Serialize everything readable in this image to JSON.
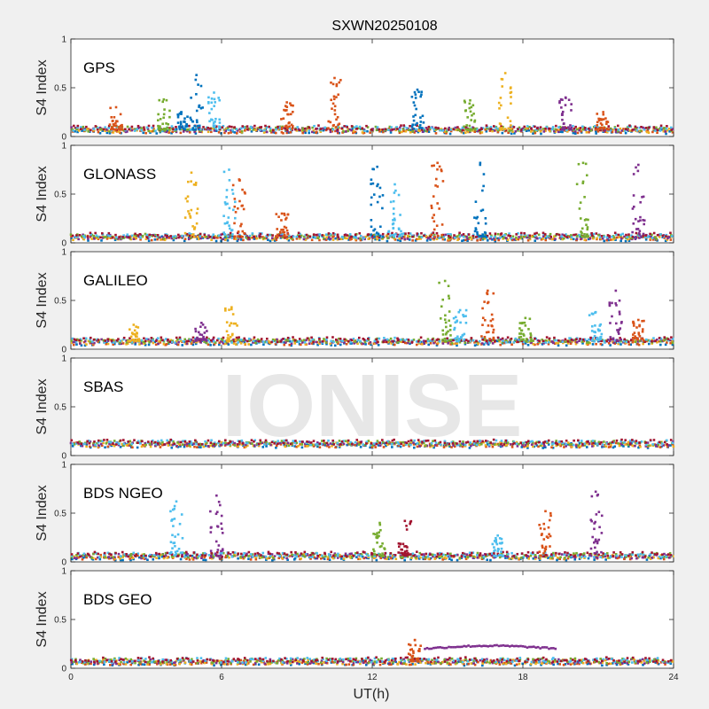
{
  "chart_data": {
    "type": "scatter",
    "title": "SXWN20250108",
    "xlabel": "UT(h)",
    "ylabel": "S4 Index",
    "xlim": [
      0,
      24
    ],
    "ylim": [
      0,
      1
    ],
    "x_ticks": [
      "0",
      "6",
      "12",
      "18",
      "24"
    ],
    "y_ticks": [
      "0",
      "0.5",
      "1"
    ],
    "watermark": "IONISE",
    "grid": false,
    "colors": [
      "#0072BD",
      "#D95319",
      "#EDB120",
      "#7E2F8E",
      "#77AC30",
      "#4DBEEE",
      "#A2142F"
    ],
    "panels": [
      {
        "label": "GPS",
        "baseline": 0.07,
        "spikes": [
          {
            "x": 1.8,
            "peak": 0.3,
            "color": 1
          },
          {
            "x": 3.7,
            "peak": 0.38,
            "color": 4
          },
          {
            "x": 4.4,
            "peak": 0.25,
            "color": 0
          },
          {
            "x": 5.0,
            "peak": 0.63,
            "color": 0
          },
          {
            "x": 5.7,
            "peak": 0.45,
            "color": 5
          },
          {
            "x": 8.6,
            "peak": 0.35,
            "color": 1
          },
          {
            "x": 10.5,
            "peak": 0.6,
            "color": 1
          },
          {
            "x": 13.8,
            "peak": 0.48,
            "color": 0
          },
          {
            "x": 15.9,
            "peak": 0.37,
            "color": 4
          },
          {
            "x": 17.3,
            "peak": 0.65,
            "color": 2
          },
          {
            "x": 19.7,
            "peak": 0.4,
            "color": 3
          },
          {
            "x": 21.2,
            "peak": 0.25,
            "color": 1
          }
        ]
      },
      {
        "label": "GLONASS",
        "baseline": 0.06,
        "spikes": [
          {
            "x": 4.8,
            "peak": 0.72,
            "color": 2
          },
          {
            "x": 6.3,
            "peak": 0.75,
            "color": 5
          },
          {
            "x": 6.7,
            "peak": 0.65,
            "color": 1
          },
          {
            "x": 8.4,
            "peak": 0.3,
            "color": 1
          },
          {
            "x": 12.2,
            "peak": 0.78,
            "color": 0
          },
          {
            "x": 12.9,
            "peak": 0.6,
            "color": 5
          },
          {
            "x": 14.6,
            "peak": 0.82,
            "color": 1
          },
          {
            "x": 16.3,
            "peak": 0.82,
            "color": 0
          },
          {
            "x": 20.4,
            "peak": 0.82,
            "color": 4
          },
          {
            "x": 22.6,
            "peak": 0.8,
            "color": 3
          }
        ]
      },
      {
        "label": "GALILEO",
        "baseline": 0.08,
        "spikes": [
          {
            "x": 2.5,
            "peak": 0.25,
            "color": 2
          },
          {
            "x": 5.2,
            "peak": 0.27,
            "color": 3
          },
          {
            "x": 6.4,
            "peak": 0.43,
            "color": 2
          },
          {
            "x": 14.9,
            "peak": 0.7,
            "color": 4
          },
          {
            "x": 15.5,
            "peak": 0.4,
            "color": 5
          },
          {
            "x": 16.6,
            "peak": 0.6,
            "color": 1
          },
          {
            "x": 18.1,
            "peak": 0.32,
            "color": 4
          },
          {
            "x": 20.9,
            "peak": 0.38,
            "color": 5
          },
          {
            "x": 21.7,
            "peak": 0.6,
            "color": 3
          },
          {
            "x": 22.6,
            "peak": 0.3,
            "color": 1
          }
        ]
      },
      {
        "label": "SBAS",
        "baseline": 0.12,
        "spikes": []
      },
      {
        "label": "BDS NGEO",
        "baseline": 0.06,
        "spikes": [
          {
            "x": 4.2,
            "peak": 0.62,
            "color": 5
          },
          {
            "x": 5.8,
            "peak": 0.68,
            "color": 3
          },
          {
            "x": 12.3,
            "peak": 0.4,
            "color": 4
          },
          {
            "x": 13.3,
            "peak": 0.42,
            "color": 6
          },
          {
            "x": 17.0,
            "peak": 0.27,
            "color": 5
          },
          {
            "x": 18.9,
            "peak": 0.52,
            "color": 1
          },
          {
            "x": 20.9,
            "peak": 0.72,
            "color": 3
          }
        ]
      },
      {
        "label": "BDS GEO",
        "baseline": 0.07,
        "spikes": [
          {
            "x": 13.7,
            "peak": 0.29,
            "color": 1
          }
        ],
        "arc": {
          "x0": 14.1,
          "x1": 19.3,
          "y": 0.2,
          "color": 3
        }
      }
    ]
  }
}
